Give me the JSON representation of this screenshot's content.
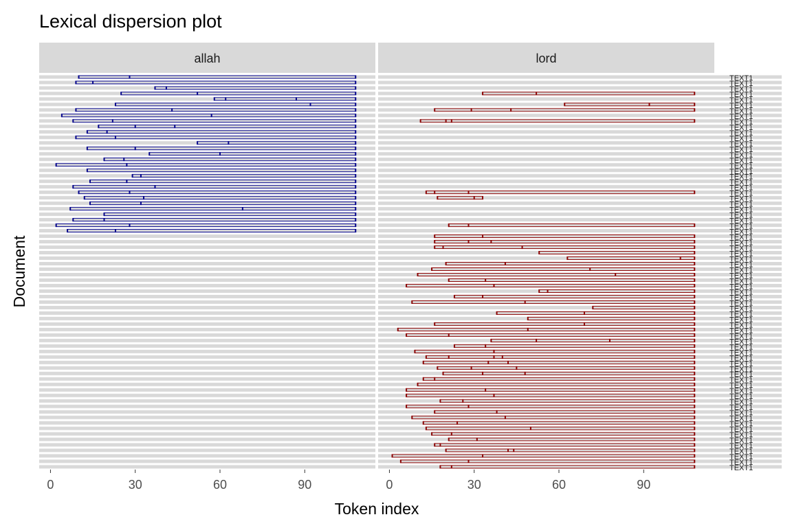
{
  "chart_data": {
    "type": "scatter",
    "title": "Lexical dispersion plot",
    "xlabel": "Token index",
    "ylabel": "Document",
    "x_ticks": [
      0,
      30,
      60,
      90
    ],
    "xlim": [
      -4,
      115
    ],
    "facets": [
      {
        "name": "allah",
        "color": "#00008b"
      },
      {
        "name": "lord",
        "color": "#8b0000"
      }
    ],
    "doc_label_text": "TEXT1",
    "documents": [
      {
        "allah": [
          10,
          28,
          108
        ],
        "lord": []
      },
      {
        "allah": [
          9,
          15,
          108
        ],
        "lord": []
      },
      {
        "allah": [
          37,
          41,
          108
        ],
        "lord": []
      },
      {
        "allah": [
          25,
          52,
          108
        ],
        "lord": [
          33,
          52,
          108
        ]
      },
      {
        "allah": [
          58,
          62,
          87,
          108
        ],
        "lord": []
      },
      {
        "allah": [
          23,
          92,
          108
        ],
        "lord": [
          62,
          92,
          108
        ]
      },
      {
        "allah": [
          9,
          43,
          108
        ],
        "lord": [
          16,
          29,
          43,
          108
        ]
      },
      {
        "allah": [
          4,
          57,
          108
        ],
        "lord": []
      },
      {
        "allah": [
          8,
          22,
          108
        ],
        "lord": [
          11,
          20,
          22,
          108
        ]
      },
      {
        "allah": [
          17,
          30,
          44,
          108
        ],
        "lord": []
      },
      {
        "allah": [
          13,
          20,
          108
        ],
        "lord": []
      },
      {
        "allah": [
          9,
          23,
          108
        ],
        "lord": []
      },
      {
        "allah": [
          52,
          63,
          108
        ],
        "lord": []
      },
      {
        "allah": [
          13,
          30,
          108
        ],
        "lord": []
      },
      {
        "allah": [
          35,
          60,
          108
        ],
        "lord": []
      },
      {
        "allah": [
          19,
          26,
          108
        ],
        "lord": []
      },
      {
        "allah": [
          2,
          27,
          108
        ],
        "lord": []
      },
      {
        "allah": [
          13,
          108
        ],
        "lord": []
      },
      {
        "allah": [
          29,
          32,
          108
        ],
        "lord": []
      },
      {
        "allah": [
          14,
          27,
          108
        ],
        "lord": []
      },
      {
        "allah": [
          8,
          37,
          108
        ],
        "lord": []
      },
      {
        "allah": [
          10,
          28,
          108
        ],
        "lord": [
          13,
          16,
          28,
          108
        ]
      },
      {
        "allah": [
          12,
          33,
          108
        ],
        "lord": [
          17,
          30,
          33
        ]
      },
      {
        "allah": [
          14,
          32,
          108
        ],
        "lord": []
      },
      {
        "allah": [
          7,
          68,
          108
        ],
        "lord": []
      },
      {
        "allah": [
          19,
          108
        ],
        "lord": []
      },
      {
        "allah": [
          8,
          19,
          108
        ],
        "lord": []
      },
      {
        "allah": [
          2,
          28,
          108
        ],
        "lord": [
          21,
          28,
          108
        ]
      },
      {
        "allah": [
          6,
          23,
          108
        ],
        "lord": []
      },
      {
        "allah": [],
        "lord": [
          16,
          33,
          108
        ]
      },
      {
        "allah": [],
        "lord": [
          16,
          28,
          36,
          108
        ]
      },
      {
        "allah": [],
        "lord": [
          16,
          19,
          47,
          108
        ]
      },
      {
        "allah": [],
        "lord": [
          53,
          108
        ]
      },
      {
        "allah": [],
        "lord": [
          63,
          103,
          108
        ]
      },
      {
        "allah": [],
        "lord": [
          20,
          41,
          108
        ]
      },
      {
        "allah": [],
        "lord": [
          15,
          71,
          108
        ]
      },
      {
        "allah": [],
        "lord": [
          10,
          80,
          108
        ]
      },
      {
        "allah": [],
        "lord": [
          21,
          34,
          108
        ]
      },
      {
        "allah": [],
        "lord": [
          6,
          37,
          108
        ]
      },
      {
        "allah": [],
        "lord": [
          53,
          56,
          108
        ]
      },
      {
        "allah": [],
        "lord": [
          23,
          33,
          108
        ]
      },
      {
        "allah": [],
        "lord": [
          8,
          48,
          108
        ]
      },
      {
        "allah": [],
        "lord": [
          72,
          108
        ]
      },
      {
        "allah": [],
        "lord": [
          38,
          69,
          108
        ]
      },
      {
        "allah": [],
        "lord": [
          49,
          108
        ]
      },
      {
        "allah": [],
        "lord": [
          16,
          69,
          108
        ]
      },
      {
        "allah": [],
        "lord": [
          3,
          49,
          108
        ]
      },
      {
        "allah": [],
        "lord": [
          6,
          21,
          108
        ]
      },
      {
        "allah": [],
        "lord": [
          36,
          52,
          78,
          108
        ]
      },
      {
        "allah": [],
        "lord": [
          23,
          34,
          108
        ]
      },
      {
        "allah": [],
        "lord": [
          9,
          37,
          108
        ]
      },
      {
        "allah": [],
        "lord": [
          13,
          21,
          37,
          40,
          108
        ]
      },
      {
        "allah": [],
        "lord": [
          12,
          35,
          42,
          108
        ]
      },
      {
        "allah": [],
        "lord": [
          17,
          29,
          45,
          108
        ]
      },
      {
        "allah": [],
        "lord": [
          19,
          33,
          48,
          108
        ]
      },
      {
        "allah": [],
        "lord": [
          12,
          16,
          108
        ]
      },
      {
        "allah": [],
        "lord": [
          10,
          108
        ]
      },
      {
        "allah": [],
        "lord": [
          6,
          34,
          108
        ]
      },
      {
        "allah": [],
        "lord": [
          6,
          37,
          108
        ]
      },
      {
        "allah": [],
        "lord": [
          18,
          26,
          108
        ]
      },
      {
        "allah": [],
        "lord": [
          6,
          28,
          108
        ]
      },
      {
        "allah": [],
        "lord": [
          16,
          38,
          108
        ]
      },
      {
        "allah": [],
        "lord": [
          8,
          41,
          108
        ]
      },
      {
        "allah": [],
        "lord": [
          12,
          24,
          108
        ]
      },
      {
        "allah": [],
        "lord": [
          13,
          50,
          108
        ]
      },
      {
        "allah": [],
        "lord": [
          15,
          22,
          108
        ]
      },
      {
        "allah": [],
        "lord": [
          21,
          31,
          108
        ]
      },
      {
        "allah": [],
        "lord": [
          16,
          18,
          108
        ]
      },
      {
        "allah": [],
        "lord": [
          20,
          42,
          44,
          108
        ]
      },
      {
        "allah": [],
        "lord": [
          1,
          33,
          108
        ]
      },
      {
        "allah": [],
        "lord": [
          4,
          28,
          108
        ]
      },
      {
        "allah": [],
        "lord": [
          18,
          22,
          108
        ]
      }
    ]
  }
}
